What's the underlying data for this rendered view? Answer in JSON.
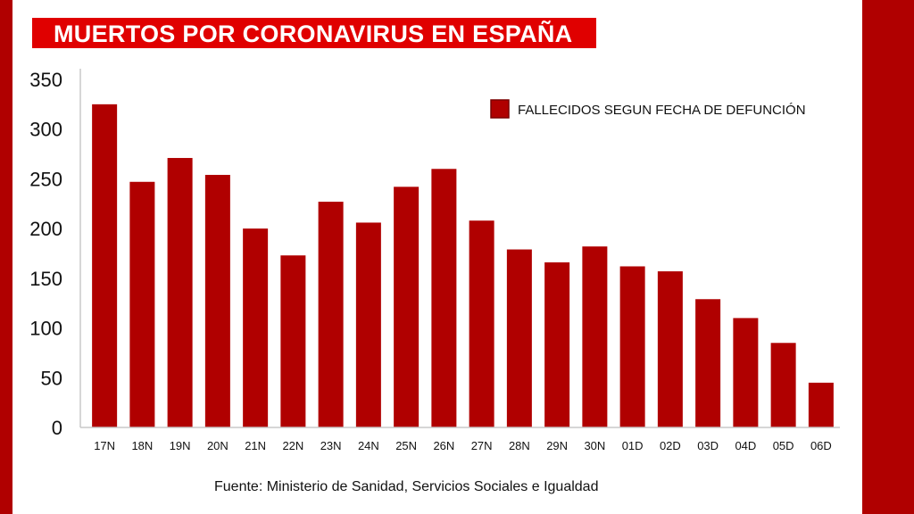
{
  "colors": {
    "frame": "#b00000",
    "title_bg": "#e00000",
    "bar": "#b00000",
    "bar_border": "#7a0000"
  },
  "title": "MUERTOS POR CORONAVIRUS EN ESPAÑA",
  "source": "Fuente: Ministerio de Sanidad, Servicios Sociales e Igualdad",
  "chart_data": {
    "type": "bar",
    "title": "MUERTOS POR CORONAVIRUS EN ESPAÑA",
    "xlabel": "",
    "ylabel": "",
    "categories": [
      "17N",
      "18N",
      "19N",
      "20N",
      "21N",
      "22N",
      "23N",
      "24N",
      "25N",
      "26N",
      "27N",
      "28N",
      "29N",
      "30N",
      "01D",
      "02D",
      "03D",
      "04D",
      "05D",
      "06D"
    ],
    "series": [
      {
        "name": "FALLECIDOS SEGUN FECHA DE DEFUNCIÓN",
        "values": [
          325,
          247,
          271,
          254,
          200,
          173,
          227,
          206,
          242,
          260,
          208,
          179,
          166,
          182,
          162,
          157,
          129,
          110,
          85,
          45
        ]
      }
    ],
    "ylim": [
      0,
      350
    ],
    "yticks": [
      0,
      50,
      100,
      150,
      200,
      250,
      300,
      350
    ],
    "grid": false,
    "legend_position": "top-right"
  }
}
